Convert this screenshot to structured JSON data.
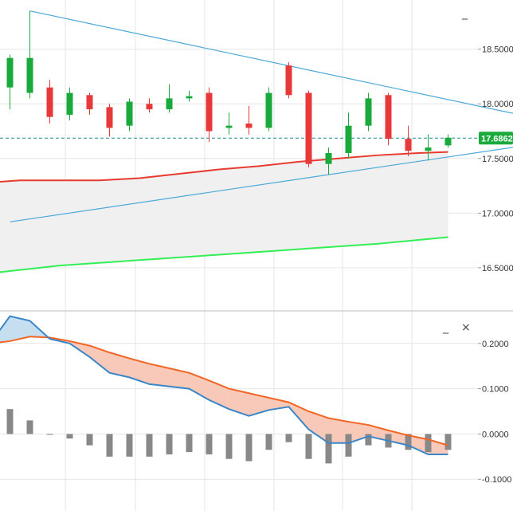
{
  "colors": {
    "up": "#1aaa3c",
    "down": "#e8393a",
    "trendline": "#4aa8d8",
    "ma_red": "#e63b2e",
    "ma_green": "#33ee55",
    "band_fill": "#f0f0f0",
    "grid": "#e6e6e6",
    "price_tag_bg": "#1aaa3c",
    "macd_line": "#3a86c8",
    "signal_line": "#f26522",
    "fill_pos": "#c5def0",
    "fill_neg": "#f8c9b8",
    "histogram": "#888888"
  },
  "controls": {
    "minimize": "_",
    "close": "×"
  },
  "chart_data": [
    {
      "type": "candlestick",
      "panel": "price",
      "y_ticks": [
        {
          "value": 18.5,
          "label": "18.5000"
        },
        {
          "value": 18.0,
          "label": "18.0000"
        },
        {
          "value": 17.5,
          "label": "17.5000"
        },
        {
          "value": 17.0,
          "label": "17.0000"
        },
        {
          "value": 16.5,
          "label": "16.5000"
        }
      ],
      "ylim": [
        16.12,
        18.95
      ],
      "x_count": 48,
      "current_price": {
        "value": 17.6862,
        "label": "17.6862"
      },
      "candles": [
        {
          "x": 1,
          "open": 18.15,
          "high": 18.45,
          "low": 17.95,
          "close": 18.42
        },
        {
          "x": 3,
          "open": 18.1,
          "high": 18.85,
          "low": 18.05,
          "close": 18.42
        },
        {
          "x": 5,
          "open": 18.15,
          "high": 18.22,
          "low": 17.82,
          "close": 17.88
        },
        {
          "x": 7,
          "open": 17.9,
          "high": 18.15,
          "low": 17.85,
          "close": 18.1
        },
        {
          "x": 9,
          "open": 18.08,
          "high": 18.1,
          "low": 17.9,
          "close": 17.95
        },
        {
          "x": 11,
          "open": 17.97,
          "high": 18.0,
          "low": 17.7,
          "close": 17.78
        },
        {
          "x": 13,
          "open": 17.8,
          "high": 18.05,
          "low": 17.75,
          "close": 18.02
        },
        {
          "x": 15,
          "open": 18.0,
          "high": 18.05,
          "low": 17.92,
          "close": 17.95
        },
        {
          "x": 17,
          "open": 17.95,
          "high": 18.18,
          "low": 17.92,
          "close": 18.05
        },
        {
          "x": 19,
          "open": 18.05,
          "high": 18.12,
          "low": 18.02,
          "close": 18.07
        },
        {
          "x": 21,
          "open": 18.1,
          "high": 18.15,
          "low": 17.65,
          "close": 17.75
        },
        {
          "x": 23,
          "open": 17.78,
          "high": 17.92,
          "low": 17.72,
          "close": 17.8
        },
        {
          "x": 25,
          "open": 17.82,
          "high": 17.98,
          "low": 17.72,
          "close": 17.78
        },
        {
          "x": 27,
          "open": 17.78,
          "high": 18.15,
          "low": 17.75,
          "close": 18.1
        },
        {
          "x": 29,
          "open": 18.35,
          "high": 18.38,
          "low": 18.05,
          "close": 18.08
        },
        {
          "x": 31,
          "open": 18.1,
          "high": 18.12,
          "low": 17.42,
          "close": 17.45
        },
        {
          "x": 33,
          "open": 17.45,
          "high": 17.6,
          "low": 17.35,
          "close": 17.55
        },
        {
          "x": 35,
          "open": 17.55,
          "high": 17.92,
          "low": 17.5,
          "close": 17.8
        },
        {
          "x": 37,
          "open": 17.8,
          "high": 18.1,
          "low": 17.75,
          "close": 18.05
        },
        {
          "x": 39,
          "open": 18.08,
          "high": 18.1,
          "low": 17.62,
          "close": 17.68
        },
        {
          "x": 41,
          "open": 17.68,
          "high": 17.8,
          "low": 17.52,
          "close": 17.57
        },
        {
          "x": 43,
          "open": 17.57,
          "high": 17.72,
          "low": 17.48,
          "close": 17.6
        },
        {
          "x": 45,
          "open": 17.62,
          "high": 17.72,
          "low": 17.6,
          "close": 17.69
        }
      ],
      "trendline_upper": [
        [
          3,
          18.85
        ],
        [
          61,
          17.73
        ]
      ],
      "trendline_lower": [
        [
          1,
          16.92
        ],
        [
          61,
          17.73
        ]
      ],
      "ma_upper": [
        [
          -1,
          17.28
        ],
        [
          2,
          17.3
        ],
        [
          6,
          17.3
        ],
        [
          10,
          17.3
        ],
        [
          14,
          17.32
        ],
        [
          18,
          17.36
        ],
        [
          22,
          17.4
        ],
        [
          26,
          17.43
        ],
        [
          30,
          17.47
        ],
        [
          34,
          17.5
        ],
        [
          38,
          17.53
        ],
        [
          42,
          17.55
        ],
        [
          45,
          17.56
        ]
      ],
      "ma_lower": [
        [
          -1,
          16.45
        ],
        [
          6,
          16.52
        ],
        [
          14,
          16.57
        ],
        [
          22,
          16.62
        ],
        [
          30,
          16.67
        ],
        [
          38,
          16.72
        ],
        [
          45,
          16.78
        ]
      ]
    },
    {
      "type": "macd",
      "panel": "indicator",
      "y_ticks": [
        {
          "value": 0.2,
          "label": "0.2000"
        },
        {
          "value": 0.1,
          "label": "0.1000"
        },
        {
          "value": 0.0,
          "label": "0.0000"
        },
        {
          "value": -0.1,
          "label": "-0.1000"
        }
      ],
      "ylim": [
        -0.17,
        0.27
      ],
      "x_count": 48,
      "macd": [
        [
          -1,
          0.2
        ],
        [
          1,
          0.26
        ],
        [
          3,
          0.25
        ],
        [
          5,
          0.21
        ],
        [
          7,
          0.2
        ],
        [
          9,
          0.17
        ],
        [
          11,
          0.135
        ],
        [
          13,
          0.125
        ],
        [
          15,
          0.11
        ],
        [
          17,
          0.105
        ],
        [
          19,
          0.1
        ],
        [
          21,
          0.075
        ],
        [
          23,
          0.055
        ],
        [
          25,
          0.04
        ],
        [
          27,
          0.053
        ],
        [
          29,
          0.06
        ],
        [
          31,
          0.01
        ],
        [
          33,
          -0.02
        ],
        [
          35,
          -0.02
        ],
        [
          37,
          -0.005
        ],
        [
          39,
          -0.015
        ],
        [
          41,
          -0.025
        ],
        [
          43,
          -0.045
        ],
        [
          45,
          -0.045
        ]
      ],
      "signal": [
        [
          -1,
          0.2
        ],
        [
          1,
          0.205
        ],
        [
          3,
          0.215
        ],
        [
          5,
          0.213
        ],
        [
          7,
          0.205
        ],
        [
          9,
          0.195
        ],
        [
          11,
          0.18
        ],
        [
          13,
          0.167
        ],
        [
          15,
          0.155
        ],
        [
          17,
          0.145
        ],
        [
          19,
          0.135
        ],
        [
          21,
          0.118
        ],
        [
          23,
          0.1
        ],
        [
          25,
          0.09
        ],
        [
          27,
          0.08
        ],
        [
          29,
          0.07
        ],
        [
          31,
          0.05
        ],
        [
          33,
          0.035
        ],
        [
          35,
          0.027
        ],
        [
          37,
          0.02
        ],
        [
          39,
          0.008
        ],
        [
          41,
          -0.003
        ],
        [
          43,
          -0.012
        ],
        [
          45,
          -0.025
        ]
      ],
      "histogram": [
        [
          1,
          0.055
        ],
        [
          3,
          0.03
        ],
        [
          5,
          0.0
        ],
        [
          7,
          -0.01
        ],
        [
          9,
          -0.025
        ],
        [
          11,
          -0.05
        ],
        [
          13,
          -0.05
        ],
        [
          15,
          -0.05
        ],
        [
          17,
          -0.045
        ],
        [
          19,
          -0.04
        ],
        [
          21,
          -0.045
        ],
        [
          23,
          -0.055
        ],
        [
          25,
          -0.06
        ],
        [
          27,
          -0.035
        ],
        [
          29,
          -0.018
        ],
        [
          31,
          -0.055
        ],
        [
          33,
          -0.065
        ],
        [
          35,
          -0.05
        ],
        [
          37,
          -0.025
        ],
        [
          39,
          -0.03
        ],
        [
          41,
          -0.035
        ],
        [
          43,
          -0.04
        ],
        [
          45,
          -0.035
        ]
      ]
    }
  ]
}
